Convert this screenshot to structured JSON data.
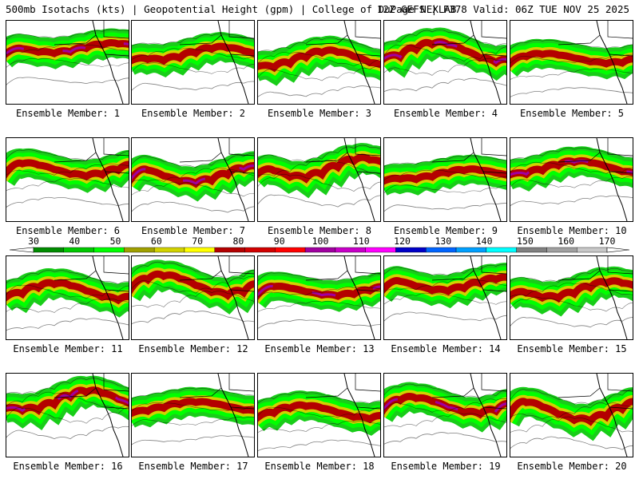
{
  "header": {
    "left": "500mb Isotachs (kts) | Geopotential Height (gpm) | College of DuPage NEXLAB",
    "right": "12Z GEFS | F378 Valid: 06Z TUE NOV 25 2025"
  },
  "colorbar": {
    "tick_labels": [
      "30",
      "40",
      "50",
      "60",
      "70",
      "80",
      "90",
      "100",
      "110",
      "120",
      "130",
      "140",
      "150",
      "160",
      "170"
    ],
    "colors": [
      "#008c00",
      "#00c800",
      "#00ff00",
      "#a0a000",
      "#d2d200",
      "#ffff00",
      "#b40000",
      "#d20000",
      "#ff0000",
      "#a000a0",
      "#c800c8",
      "#ff00ff",
      "#0000c8",
      "#0064ff",
      "#00a0ff",
      "#00ffff",
      "#808080",
      "#a0a0a0",
      "#c8c8c8"
    ]
  },
  "panels": [
    {
      "label": "Ensemble Member: 1"
    },
    {
      "label": "Ensemble Member: 2"
    },
    {
      "label": "Ensemble Member: 3"
    },
    {
      "label": "Ensemble Member: 4"
    },
    {
      "label": "Ensemble Member: 5"
    },
    {
      "label": "Ensemble Member: 6"
    },
    {
      "label": "Ensemble Member: 7"
    },
    {
      "label": "Ensemble Member: 8"
    },
    {
      "label": "Ensemble Member: 9"
    },
    {
      "label": "Ensemble Member: 10"
    },
    {
      "label": "Ensemble Member: 11"
    },
    {
      "label": "Ensemble Member: 12"
    },
    {
      "label": "Ensemble Member: 13"
    },
    {
      "label": "Ensemble Member: 14"
    },
    {
      "label": "Ensemble Member: 15"
    },
    {
      "label": "Ensemble Member: 16"
    },
    {
      "label": "Ensemble Member: 17"
    },
    {
      "label": "Ensemble Member: 18"
    },
    {
      "label": "Ensemble Member: 19"
    },
    {
      "label": "Ensemble Member: 20"
    }
  ]
}
